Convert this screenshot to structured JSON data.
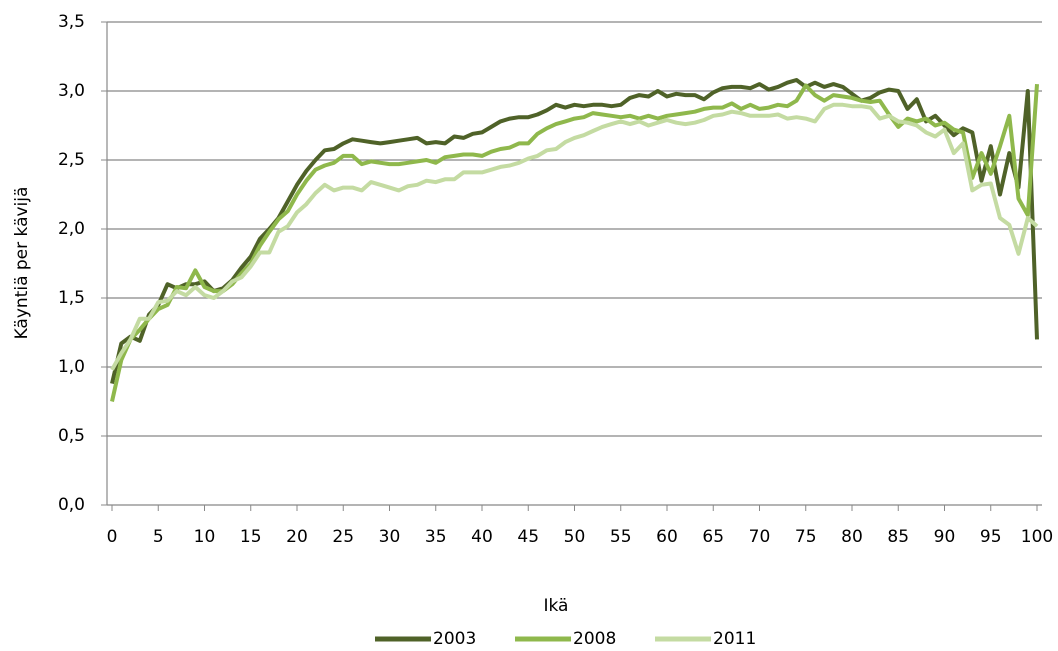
{
  "chart_data": {
    "type": "line",
    "xlabel": "Ikä",
    "ylabel": "Käyntiä per kävijä",
    "x": [
      0,
      1,
      2,
      3,
      4,
      5,
      6,
      7,
      8,
      9,
      10,
      11,
      12,
      13,
      14,
      15,
      16,
      17,
      18,
      19,
      20,
      21,
      22,
      23,
      24,
      25,
      26,
      27,
      28,
      29,
      30,
      31,
      32,
      33,
      34,
      35,
      36,
      37,
      38,
      39,
      40,
      41,
      42,
      43,
      44,
      45,
      46,
      47,
      48,
      49,
      50,
      51,
      52,
      53,
      54,
      55,
      56,
      57,
      58,
      59,
      60,
      61,
      62,
      63,
      64,
      65,
      66,
      67,
      68,
      69,
      70,
      71,
      72,
      73,
      74,
      75,
      76,
      77,
      78,
      79,
      80,
      81,
      82,
      83,
      84,
      85,
      86,
      87,
      88,
      89,
      90,
      91,
      92,
      93,
      94,
      95,
      96,
      97,
      98,
      99,
      100
    ],
    "series": [
      {
        "name": "2003",
        "color": "#4f6228",
        "values": [
          0.88,
          1.17,
          1.22,
          1.19,
          1.38,
          1.45,
          1.6,
          1.57,
          1.6,
          1.6,
          1.62,
          1.55,
          1.57,
          1.63,
          1.72,
          1.8,
          1.93,
          2.0,
          2.08,
          2.2,
          2.32,
          2.42,
          2.5,
          2.57,
          2.58,
          2.62,
          2.65,
          2.64,
          2.63,
          2.62,
          2.63,
          2.64,
          2.65,
          2.66,
          2.62,
          2.63,
          2.62,
          2.67,
          2.66,
          2.69,
          2.7,
          2.74,
          2.78,
          2.8,
          2.81,
          2.81,
          2.83,
          2.86,
          2.9,
          2.88,
          2.9,
          2.89,
          2.9,
          2.9,
          2.89,
          2.9,
          2.95,
          2.97,
          2.96,
          3.0,
          2.96,
          2.98,
          2.97,
          2.97,
          2.94,
          2.99,
          3.02,
          3.03,
          3.03,
          3.02,
          3.05,
          3.01,
          3.03,
          3.06,
          3.08,
          3.03,
          3.06,
          3.03,
          3.05,
          3.03,
          2.98,
          2.93,
          2.95,
          2.99,
          3.01,
          3.0,
          2.87,
          2.94,
          2.78,
          2.82,
          2.75,
          2.68,
          2.73,
          2.7,
          2.35,
          2.6,
          2.25,
          2.55,
          2.3,
          3.0,
          1.2
        ]
      },
      {
        "name": "2008",
        "color": "#8fb84c",
        "values": [
          0.75,
          1.05,
          1.2,
          1.27,
          1.35,
          1.42,
          1.45,
          1.58,
          1.57,
          1.7,
          1.58,
          1.55,
          1.55,
          1.6,
          1.68,
          1.75,
          1.88,
          1.98,
          2.07,
          2.13,
          2.25,
          2.35,
          2.43,
          2.46,
          2.48,
          2.53,
          2.53,
          2.47,
          2.49,
          2.48,
          2.47,
          2.47,
          2.48,
          2.49,
          2.5,
          2.48,
          2.52,
          2.53,
          2.54,
          2.54,
          2.53,
          2.56,
          2.58,
          2.59,
          2.62,
          2.62,
          2.69,
          2.73,
          2.76,
          2.78,
          2.8,
          2.81,
          2.84,
          2.83,
          2.82,
          2.81,
          2.82,
          2.8,
          2.82,
          2.8,
          2.82,
          2.83,
          2.84,
          2.85,
          2.87,
          2.88,
          2.88,
          2.91,
          2.87,
          2.9,
          2.87,
          2.88,
          2.9,
          2.89,
          2.93,
          3.04,
          2.97,
          2.93,
          2.97,
          2.96,
          2.95,
          2.93,
          2.92,
          2.93,
          2.83,
          2.74,
          2.8,
          2.78,
          2.8,
          2.75,
          2.77,
          2.72,
          2.7,
          2.37,
          2.55,
          2.4,
          2.6,
          2.82,
          2.22,
          2.1,
          3.05
        ]
      },
      {
        "name": "2011",
        "color": "#c4dba2",
        "values": [
          0.98,
          1.1,
          1.2,
          1.35,
          1.35,
          1.47,
          1.48,
          1.55,
          1.52,
          1.58,
          1.52,
          1.5,
          1.55,
          1.62,
          1.65,
          1.73,
          1.83,
          1.83,
          1.98,
          2.02,
          2.12,
          2.18,
          2.26,
          2.32,
          2.28,
          2.3,
          2.3,
          2.28,
          2.34,
          2.32,
          2.3,
          2.28,
          2.31,
          2.32,
          2.35,
          2.34,
          2.36,
          2.36,
          2.41,
          2.41,
          2.41,
          2.43,
          2.45,
          2.46,
          2.48,
          2.51,
          2.53,
          2.57,
          2.58,
          2.63,
          2.66,
          2.68,
          2.71,
          2.74,
          2.76,
          2.78,
          2.76,
          2.78,
          2.75,
          2.77,
          2.79,
          2.77,
          2.76,
          2.77,
          2.79,
          2.82,
          2.83,
          2.85,
          2.84,
          2.82,
          2.82,
          2.82,
          2.83,
          2.8,
          2.81,
          2.8,
          2.78,
          2.87,
          2.9,
          2.9,
          2.89,
          2.89,
          2.88,
          2.8,
          2.82,
          2.78,
          2.77,
          2.75,
          2.7,
          2.67,
          2.72,
          2.55,
          2.62,
          2.28,
          2.32,
          2.33,
          2.08,
          2.03,
          1.82,
          2.08,
          2.02
        ]
      }
    ],
    "xlim": [
      0,
      100
    ],
    "xticks": [
      0,
      5,
      10,
      15,
      20,
      25,
      30,
      35,
      40,
      45,
      50,
      55,
      60,
      65,
      70,
      75,
      80,
      85,
      90,
      95,
      100
    ],
    "ylim": [
      0,
      3.5
    ],
    "yticks": [
      {
        "value": 0,
        "label": "0,0"
      },
      {
        "value": 0.5,
        "label": "0,5"
      },
      {
        "value": 1,
        "label": "1,0"
      },
      {
        "value": 1.5,
        "label": "1,5"
      },
      {
        "value": 2,
        "label": "2,0"
      },
      {
        "value": 2.5,
        "label": "2,5"
      },
      {
        "value": 3,
        "label": "3,0"
      },
      {
        "value": 3.5,
        "label": "3,5"
      }
    ],
    "grid": true,
    "legend": "bottom"
  }
}
